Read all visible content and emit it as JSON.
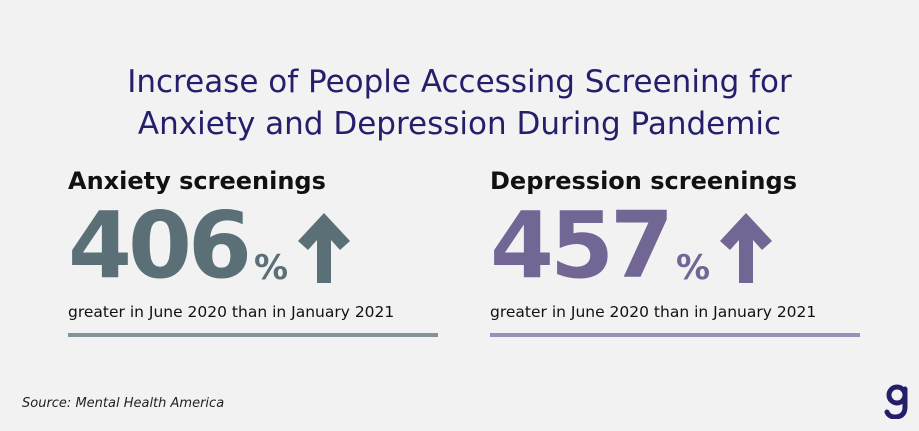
{
  "title": {
    "line1": "Increase of People Accessing Screening for",
    "line2": "Anxiety and Depression During Pandemic"
  },
  "stats": [
    {
      "label": "Anxiety screenings",
      "value": "406",
      "unit": "%",
      "icon": "arrow-up-icon",
      "caption": "greater in June 2020 than in January 2021",
      "color": "#5a7076"
    },
    {
      "label": "Depression screenings",
      "value": "457",
      "unit": "%",
      "icon": "arrow-up-icon",
      "caption": "greater in June 2020 than in January 2021",
      "color": "#726694"
    }
  ],
  "source": "Source: Mental Health America",
  "logo": {
    "icon": "g-logo-icon",
    "color": "#241f6b"
  }
}
